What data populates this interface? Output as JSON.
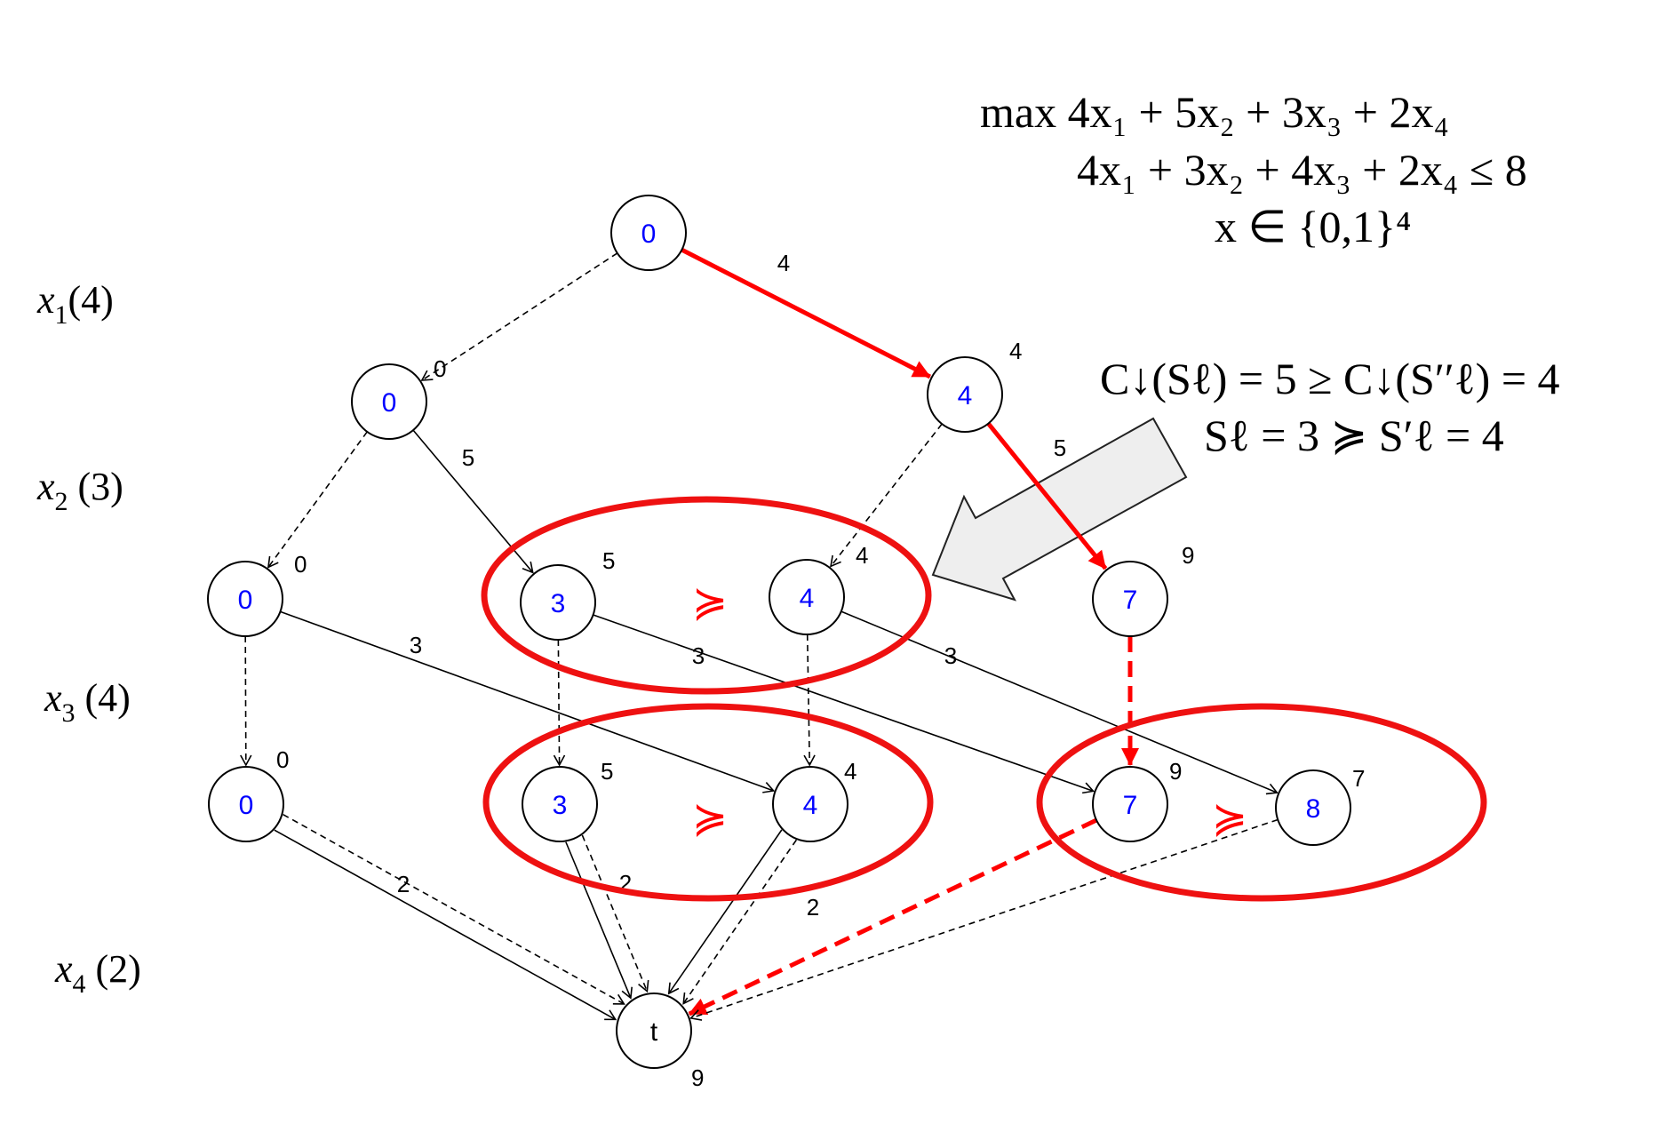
{
  "colors": {
    "node_value": "#0000ff",
    "highlight": "#ff0000",
    "callout_fill": "#eeeeee"
  },
  "row_labels": [
    {
      "var": "x",
      "sub": "1",
      "weight": "(4)"
    },
    {
      "var": "x",
      "sub": "2",
      "weight": " (3)"
    },
    {
      "var": "x",
      "sub": "3",
      "weight": " (4)"
    },
    {
      "var": "x",
      "sub": "4",
      "weight": " (2)"
    }
  ],
  "problem": {
    "objective": "max 4x₁ + 5x₂ + 3x₃ + 2x₄",
    "constraint": "4x₁ + 3x₂ + 4x₃ + 2x₄ ≤ 8",
    "domain": "x ∈ {0,1}⁴"
  },
  "annotation": {
    "line1": "C↓(Sℓ) = 5 ≥ C↓(S′′ℓ) = 4",
    "line2": "Sℓ = 3 ≽ S′ℓ = 4"
  },
  "dominance_symbol": "≽",
  "nodes": [
    {
      "id": "r",
      "value": "0",
      "bound": ""
    },
    {
      "id": "a",
      "value": "0",
      "bound": "0"
    },
    {
      "id": "b",
      "value": "4",
      "bound": "4"
    },
    {
      "id": "c",
      "value": "0",
      "bound": "0"
    },
    {
      "id": "d",
      "value": "3",
      "bound": "5"
    },
    {
      "id": "e",
      "value": "4",
      "bound": "4"
    },
    {
      "id": "f",
      "value": "7",
      "bound": "9"
    },
    {
      "id": "g",
      "value": "0",
      "bound": "0"
    },
    {
      "id": "h",
      "value": "3",
      "bound": "5"
    },
    {
      "id": "i",
      "value": "4",
      "bound": "4"
    },
    {
      "id": "j",
      "value": "7",
      "bound": "9"
    },
    {
      "id": "k",
      "value": "8",
      "bound": "7"
    },
    {
      "id": "t",
      "value": "t",
      "bound": "9"
    }
  ],
  "edges": [
    {
      "from": "r",
      "to": "a",
      "style": "dashed",
      "label": ""
    },
    {
      "from": "r",
      "to": "b",
      "style": "red-solid",
      "label": "4"
    },
    {
      "from": "a",
      "to": "c",
      "style": "dashed",
      "label": ""
    },
    {
      "from": "a",
      "to": "d",
      "style": "solid",
      "label": "5"
    },
    {
      "from": "b",
      "to": "e",
      "style": "dashed",
      "label": ""
    },
    {
      "from": "b",
      "to": "f",
      "style": "red-solid",
      "label": "5"
    },
    {
      "from": "c",
      "to": "g",
      "style": "dashed",
      "label": ""
    },
    {
      "from": "c",
      "to": "i",
      "style": "solid",
      "label": "3"
    },
    {
      "from": "d",
      "to": "h",
      "style": "dashed",
      "label": ""
    },
    {
      "from": "d",
      "to": "j",
      "style": "solid",
      "label": "3"
    },
    {
      "from": "e",
      "to": "i",
      "style": "dashed",
      "label": ""
    },
    {
      "from": "e",
      "to": "k",
      "style": "solid",
      "label": "3"
    },
    {
      "from": "f",
      "to": "j",
      "style": "red-dashed",
      "label": ""
    },
    {
      "from": "g",
      "to": "t",
      "style": "solid",
      "label": "2"
    },
    {
      "from": "g",
      "to": "t",
      "style": "dashed",
      "label": ""
    },
    {
      "from": "h",
      "to": "t",
      "style": "solid",
      "label": "2"
    },
    {
      "from": "h",
      "to": "t",
      "style": "dashed",
      "label": ""
    },
    {
      "from": "i",
      "to": "t",
      "style": "solid",
      "label": "2"
    },
    {
      "from": "i",
      "to": "t",
      "style": "dashed",
      "label": ""
    },
    {
      "from": "j",
      "to": "t",
      "style": "red-dashed",
      "label": ""
    },
    {
      "from": "k",
      "to": "t",
      "style": "dashed",
      "label": ""
    }
  ]
}
